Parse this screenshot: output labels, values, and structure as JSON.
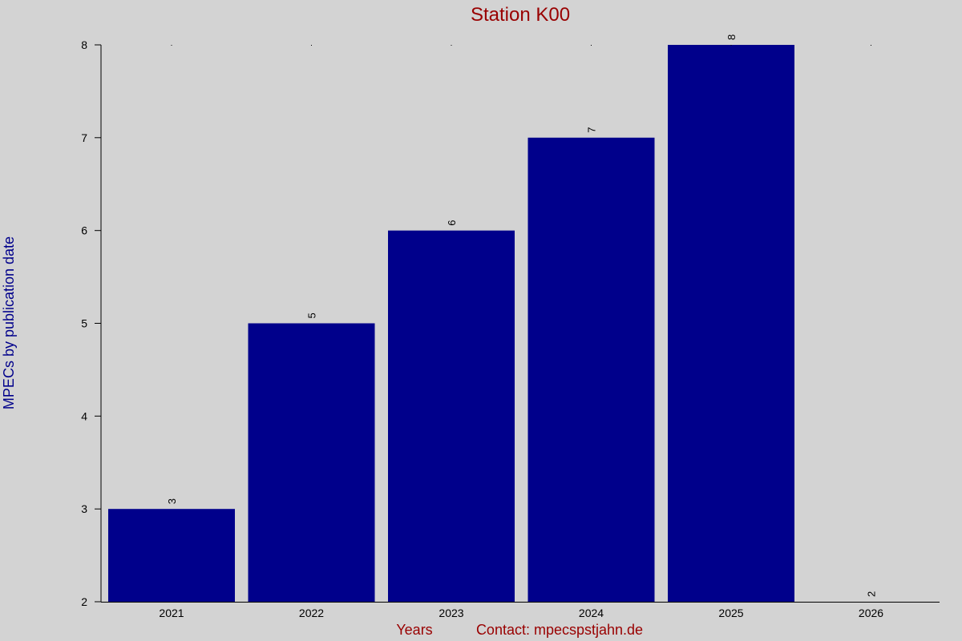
{
  "chart_data": {
    "type": "bar",
    "title": "Station K00",
    "xlabel": "Years",
    "ylabel": "MPECs by publication date",
    "credit": "Contact: mpecspstjahn.de",
    "categories": [
      "2021",
      "2022",
      "2023",
      "2024",
      "2025",
      "2026"
    ],
    "values": [
      3,
      5,
      6,
      7,
      8,
      2
    ],
    "ylim": [
      2,
      8
    ],
    "yticks": [
      2,
      3,
      4,
      5,
      6,
      7,
      8
    ],
    "bar_color": "#00008b",
    "background_color": "#d3d3d3",
    "grid": false,
    "legend": "none"
  }
}
